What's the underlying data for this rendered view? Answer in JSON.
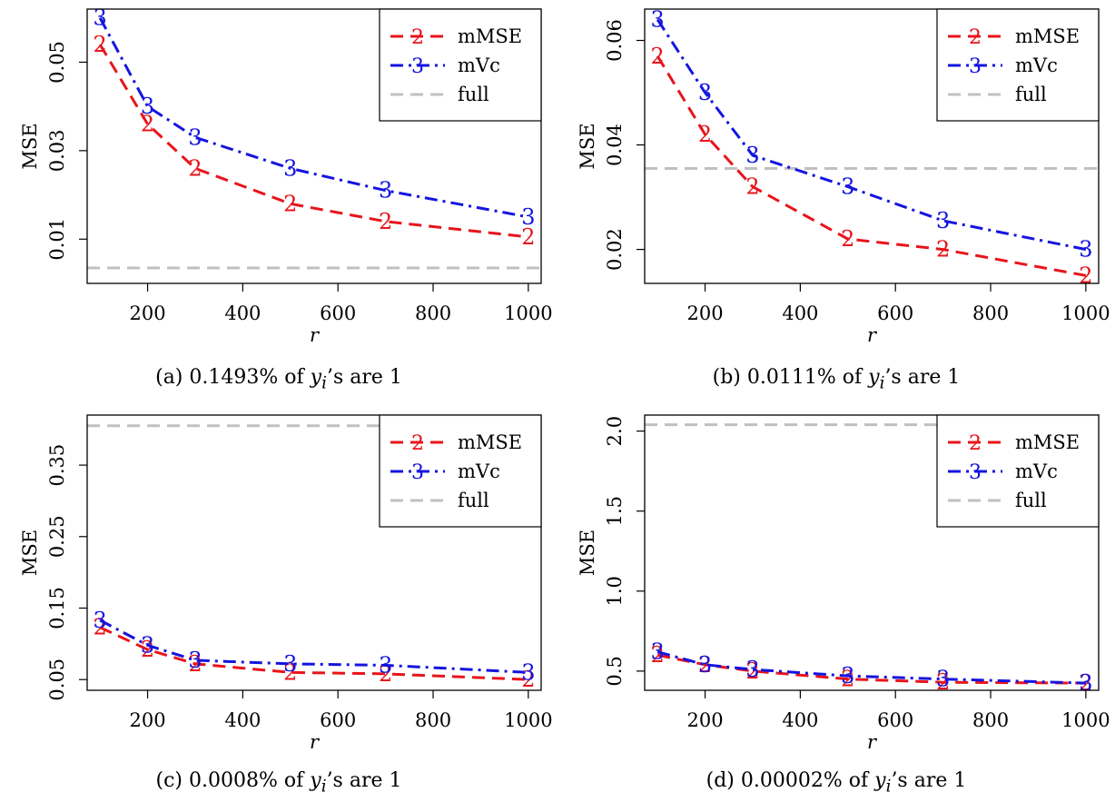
{
  "chart_data": [
    {
      "type": "line",
      "caption": {
        "prefix": "(a) 0.1493% of ",
        "var": "y",
        "sub": "i",
        "suffix": "’s are 1"
      },
      "xlabel": "r",
      "ylabel": "MSE",
      "x": [
        100,
        200,
        300,
        500,
        700,
        1000
      ],
      "xticks": [
        "200",
        "400",
        "600",
        "800",
        "1000"
      ],
      "yticks": [
        "0.01",
        "0.03",
        "0.05"
      ],
      "ylim": [
        0.0,
        0.062
      ],
      "series": [
        {
          "name": "mMSE",
          "marker": "2",
          "color": "#e8141b",
          "values": [
            0.054,
            0.036,
            0.026,
            0.018,
            0.014,
            0.0105
          ]
        },
        {
          "name": "mVc",
          "marker": "3",
          "color": "#1414e0",
          "values": [
            0.06,
            0.04,
            0.033,
            0.026,
            0.021,
            0.015
          ]
        }
      ],
      "reference": {
        "name": "full",
        "color": "#c0c0c0",
        "value": 0.0035
      },
      "legend": "top-right"
    },
    {
      "type": "line",
      "caption": {
        "prefix": "(b) 0.0111% of ",
        "var": "y",
        "sub": "i",
        "suffix": "’s are 1"
      },
      "xlabel": "r",
      "ylabel": "MSE",
      "x": [
        100,
        200,
        300,
        500,
        700,
        1000
      ],
      "xticks": [
        "200",
        "400",
        "600",
        "800",
        "1000"
      ],
      "yticks": [
        "0.02",
        "0.04",
        "0.06"
      ],
      "ylim": [
        0.0135,
        0.066
      ],
      "series": [
        {
          "name": "mMSE",
          "marker": "2",
          "color": "#e8141b",
          "values": [
            0.057,
            0.042,
            0.032,
            0.022,
            0.02,
            0.015
          ]
        },
        {
          "name": "mVc",
          "marker": "3",
          "color": "#1414e0",
          "values": [
            0.064,
            0.05,
            0.038,
            0.032,
            0.0255,
            0.02
          ]
        }
      ],
      "reference": {
        "name": "full",
        "color": "#c0c0c0",
        "value": 0.0355
      },
      "legend": "top-right"
    },
    {
      "type": "line",
      "caption": {
        "prefix": "(c) 0.0008% of ",
        "var": "y",
        "sub": "i",
        "suffix": "’s are 1"
      },
      "xlabel": "r",
      "ylabel": "MSE",
      "x": [
        100,
        200,
        300,
        500,
        700,
        1000
      ],
      "xticks": [
        "200",
        "400",
        "600",
        "800",
        "1000"
      ],
      "yticks": [
        "0.05",
        "0.15",
        "0.25",
        "0.35"
      ],
      "ylim": [
        0.035,
        0.42
      ],
      "series": [
        {
          "name": "mMSE",
          "marker": "2",
          "color": "#e8141b",
          "values": [
            0.123,
            0.092,
            0.072,
            0.06,
            0.058,
            0.05
          ]
        },
        {
          "name": "mVc",
          "marker": "3",
          "color": "#1414e0",
          "values": [
            0.133,
            0.098,
            0.077,
            0.072,
            0.07,
            0.06
          ]
        }
      ],
      "reference": {
        "name": "full",
        "color": "#c0c0c0",
        "value": 0.405
      },
      "legend": "top-right"
    },
    {
      "type": "line",
      "caption": {
        "prefix": "(d) 0.00002% of ",
        "var": "y",
        "sub": "i",
        "suffix": "’s are 1"
      },
      "xlabel": "r",
      "ylabel": "MSE",
      "x": [
        100,
        200,
        300,
        500,
        700,
        1000
      ],
      "xticks": [
        "200",
        "400",
        "600",
        "800",
        "1000"
      ],
      "yticks": [
        "0.5",
        "1.0",
        "1.5",
        "2.0"
      ],
      "ylim": [
        0.38,
        2.1
      ],
      "series": [
        {
          "name": "mMSE",
          "marker": "2",
          "color": "#e8141b",
          "values": [
            0.6,
            0.54,
            0.5,
            0.45,
            0.43,
            0.425
          ]
        },
        {
          "name": "mVc",
          "marker": "3",
          "color": "#1414e0",
          "values": [
            0.62,
            0.54,
            0.51,
            0.47,
            0.45,
            0.425
          ]
        }
      ],
      "reference": {
        "name": "full",
        "color": "#c0c0c0",
        "value": 2.04
      },
      "legend": "top-right"
    }
  ]
}
